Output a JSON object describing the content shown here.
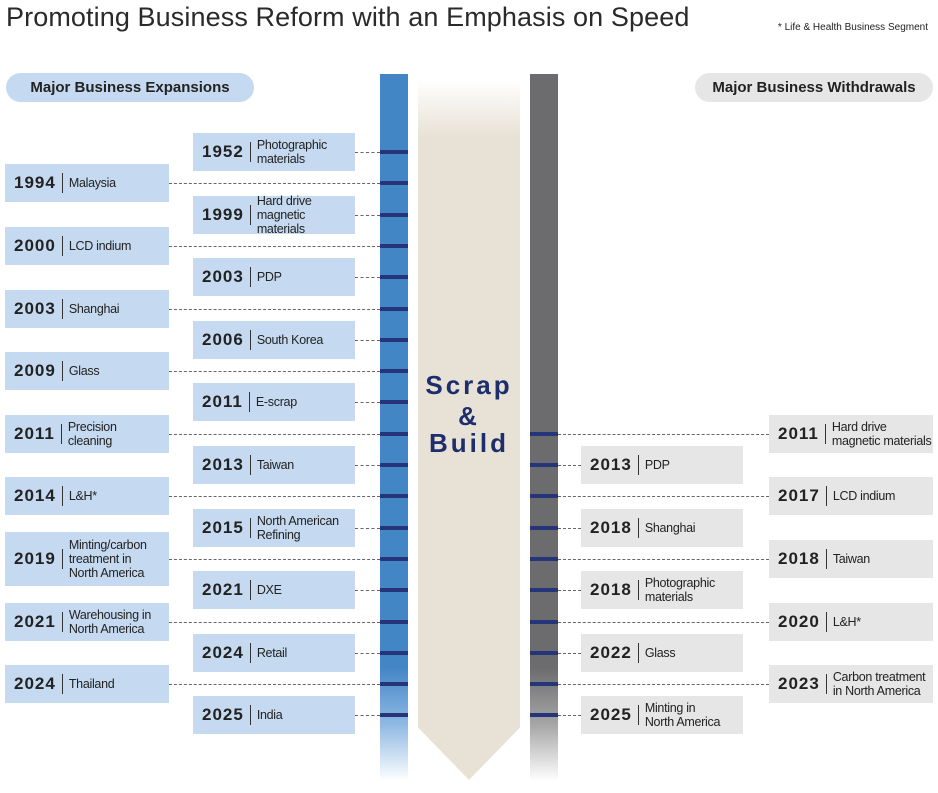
{
  "title": "Promoting Business Reform with an Emphasis on Speed",
  "note": "* Life & Health Business Segment",
  "expansions_heading": "Major Business Expansions",
  "withdrawals_heading": "Major Business Withdrawals",
  "center": {
    "line1": "Scrap",
    "line2": "&",
    "line3": "Build"
  },
  "colors": {
    "expansion": "#c5daf0",
    "withdrawal": "#e6e6e6",
    "blue_bar": "#4386c6",
    "gray_bar": "#6c6c6e",
    "tick": "#26357a",
    "arrow": "#e8e2d6"
  },
  "expansions": [
    {
      "year": "1952",
      "label": "Photographic\nmaterials"
    },
    {
      "year": "1994",
      "label": "Malaysia"
    },
    {
      "year": "1999",
      "label": "Hard drive\nmagnetic materials"
    },
    {
      "year": "2000",
      "label": "LCD indium"
    },
    {
      "year": "2003",
      "label": "PDP"
    },
    {
      "year": "2003",
      "label": "Shanghai"
    },
    {
      "year": "2006",
      "label": "South Korea"
    },
    {
      "year": "2009",
      "label": "Glass"
    },
    {
      "year": "2011",
      "label": "E-scrap"
    },
    {
      "year": "2011",
      "label": "Precision\ncleaning"
    },
    {
      "year": "2013",
      "label": "Taiwan"
    },
    {
      "year": "2014",
      "label": "L&H*"
    },
    {
      "year": "2015",
      "label": "North American\nRefining"
    },
    {
      "year": "2019",
      "label": "Minting/carbon\ntreatment in\nNorth America"
    },
    {
      "year": "2021",
      "label": "DXE"
    },
    {
      "year": "2021",
      "label": "Warehousing in\nNorth America"
    },
    {
      "year": "2024",
      "label": "Retail"
    },
    {
      "year": "2024",
      "label": "Thailand"
    },
    {
      "year": "2025",
      "label": "India"
    }
  ],
  "withdrawals": [
    {
      "year": "2011",
      "label": "Hard drive\nmagnetic materials"
    },
    {
      "year": "2013",
      "label": "PDP"
    },
    {
      "year": "2017",
      "label": "LCD indium"
    },
    {
      "year": "2018",
      "label": "Shanghai"
    },
    {
      "year": "2018",
      "label": "Taiwan"
    },
    {
      "year": "2018",
      "label": "Photographic\nmaterials"
    },
    {
      "year": "2020",
      "label": "L&H*"
    },
    {
      "year": "2022",
      "label": "Glass"
    },
    {
      "year": "2023",
      "label": "Carbon treatment\nin North America"
    },
    {
      "year": "2025",
      "label": "Minting in\nNorth America"
    }
  ]
}
